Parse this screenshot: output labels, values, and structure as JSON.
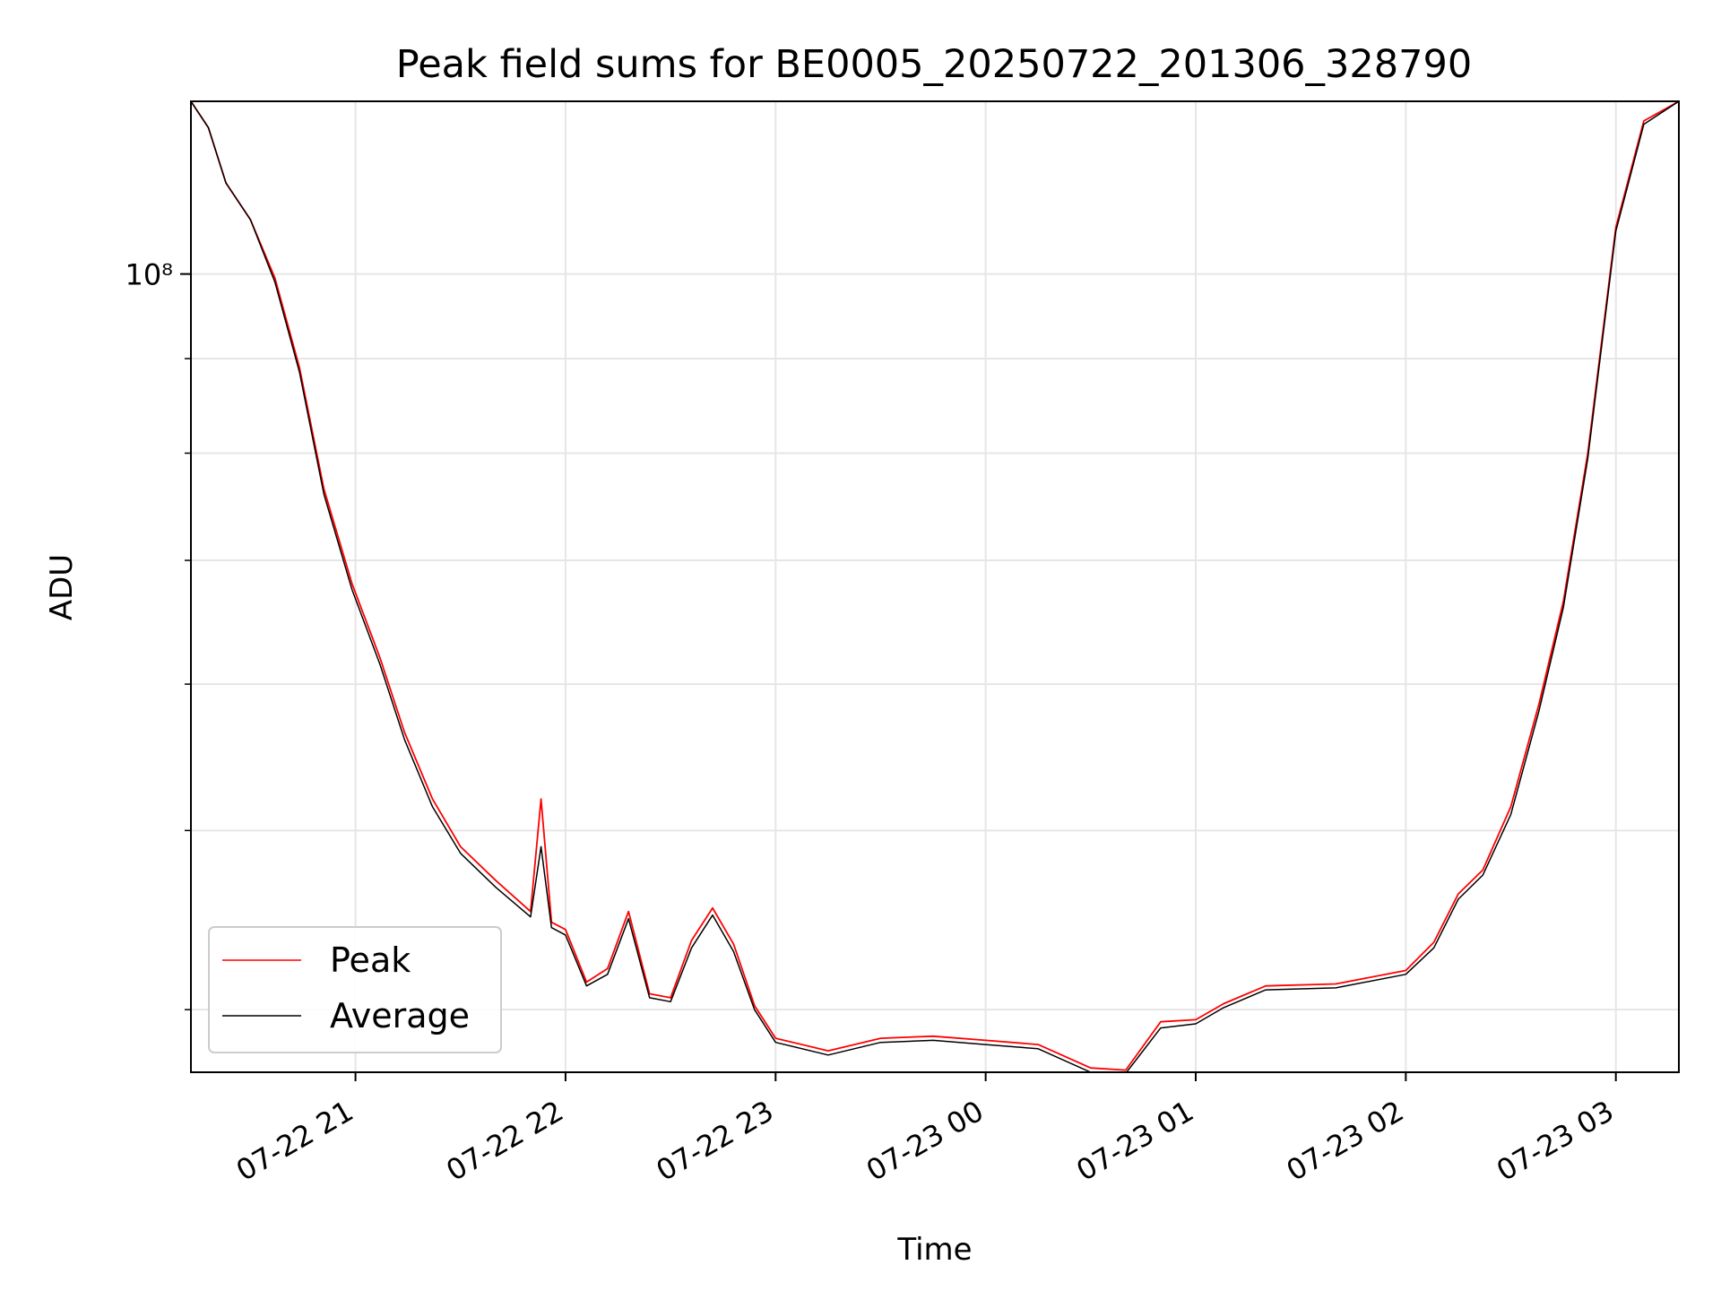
{
  "chart_data": {
    "type": "line",
    "title": "Peak field sums for BE0005_20250722_201306_328790",
    "xlabel": "Time",
    "ylabel": "ADU",
    "y_scale": "log",
    "ylim": [
      37000000,
      124000000
    ],
    "xlim": [
      "2025-07-22T20:13",
      "2025-07-23T03:18"
    ],
    "x_tick_labels": [
      "07-22 21",
      "07-22 22",
      "07-22 23",
      "07-23 00",
      "07-23 01",
      "07-23 02",
      "07-23 03"
    ],
    "y_tick_labels": [
      "10⁸"
    ],
    "grid": true,
    "legend_position": "lower-left",
    "series": [
      {
        "name": "Peak",
        "color": "#ff0000",
        "x": [
          "2025-07-22T20:13",
          "2025-07-22T20:18",
          "2025-07-22T20:23",
          "2025-07-22T20:30",
          "2025-07-22T20:37",
          "2025-07-22T20:44",
          "2025-07-22T20:51",
          "2025-07-22T20:59",
          "2025-07-22T21:07",
          "2025-07-22T21:14",
          "2025-07-22T21:22",
          "2025-07-22T21:30",
          "2025-07-22T21:40",
          "2025-07-22T21:50",
          "2025-07-22T21:53",
          "2025-07-22T21:56",
          "2025-07-22T22:00",
          "2025-07-22T22:06",
          "2025-07-22T22:12",
          "2025-07-22T22:18",
          "2025-07-22T22:24",
          "2025-07-22T22:30",
          "2025-07-22T22:36",
          "2025-07-22T22:42",
          "2025-07-22T22:48",
          "2025-07-22T22:54",
          "2025-07-22T23:00",
          "2025-07-22T23:15",
          "2025-07-22T23:30",
          "2025-07-22T23:45",
          "2025-07-23T00:00",
          "2025-07-23T00:15",
          "2025-07-23T00:30",
          "2025-07-23T00:40",
          "2025-07-23T00:50",
          "2025-07-23T01:00",
          "2025-07-23T01:08",
          "2025-07-23T01:20",
          "2025-07-23T01:40",
          "2025-07-23T02:00",
          "2025-07-23T02:08",
          "2025-07-23T02:15",
          "2025-07-23T02:22",
          "2025-07-23T02:30",
          "2025-07-23T02:38",
          "2025-07-23T02:45",
          "2025-07-23T02:52",
          "2025-07-23T03:00",
          "2025-07-23T03:08",
          "2025-07-23T03:18"
        ],
        "values": [
          124000000,
          120000000,
          112000000,
          107000000,
          99500000,
          89000000,
          76500000,
          68000000,
          62000000,
          56500000,
          52000000,
          49000000,
          47000000,
          45200000,
          52000000,
          44600000,
          44200000,
          41400000,
          42100000,
          45200000,
          40800000,
          40600000,
          43600000,
          45400000,
          43400000,
          40200000,
          38600000,
          38000000,
          38600000,
          38700000,
          38500000,
          38300000,
          37200000,
          37100000,
          39400000,
          39500000,
          40300000,
          41200000,
          41300000,
          42000000,
          43500000,
          46200000,
          47600000,
          51500000,
          58500000,
          66500000,
          80000000,
          106000000,
          121000000,
          124000000
        ]
      },
      {
        "name": "Average",
        "color": "#000000",
        "x": [
          "2025-07-22T20:13",
          "2025-07-22T20:18",
          "2025-07-22T20:23",
          "2025-07-22T20:30",
          "2025-07-22T20:37",
          "2025-07-22T20:44",
          "2025-07-22T20:51",
          "2025-07-22T20:59",
          "2025-07-22T21:07",
          "2025-07-22T21:14",
          "2025-07-22T21:22",
          "2025-07-22T21:30",
          "2025-07-22T21:40",
          "2025-07-22T21:50",
          "2025-07-22T21:53",
          "2025-07-22T21:56",
          "2025-07-22T22:00",
          "2025-07-22T22:06",
          "2025-07-22T22:12",
          "2025-07-22T22:18",
          "2025-07-22T22:24",
          "2025-07-22T22:30",
          "2025-07-22T22:36",
          "2025-07-22T22:42",
          "2025-07-22T22:48",
          "2025-07-22T22:54",
          "2025-07-22T23:00",
          "2025-07-22T23:15",
          "2025-07-22T23:30",
          "2025-07-22T23:45",
          "2025-07-23T00:00",
          "2025-07-23T00:15",
          "2025-07-23T00:30",
          "2025-07-23T00:40",
          "2025-07-23T00:50",
          "2025-07-23T01:00",
          "2025-07-23T01:08",
          "2025-07-23T01:20",
          "2025-07-23T01:40",
          "2025-07-23T02:00",
          "2025-07-23T02:08",
          "2025-07-23T02:15",
          "2025-07-23T02:22",
          "2025-07-23T02:30",
          "2025-07-23T02:38",
          "2025-07-23T02:45",
          "2025-07-23T02:52",
          "2025-07-23T03:00",
          "2025-07-23T03:08",
          "2025-07-23T03:18"
        ],
        "values": [
          124000000,
          120000000,
          112000000,
          107000000,
          99000000,
          88500000,
          76000000,
          67500000,
          61500000,
          56000000,
          51500000,
          48600000,
          46600000,
          44900000,
          49000000,
          44300000,
          43900000,
          41200000,
          41800000,
          44800000,
          40600000,
          40400000,
          43200000,
          45000000,
          43000000,
          40000000,
          38400000,
          37800000,
          38400000,
          38500000,
          38300000,
          38100000,
          37000000,
          36950000,
          39100000,
          39300000,
          40100000,
          41000000,
          41100000,
          41800000,
          43200000,
          45900000,
          47300000,
          51000000,
          58000000,
          66000000,
          79500000,
          105500000,
          120500000,
          124000000
        ]
      }
    ]
  }
}
